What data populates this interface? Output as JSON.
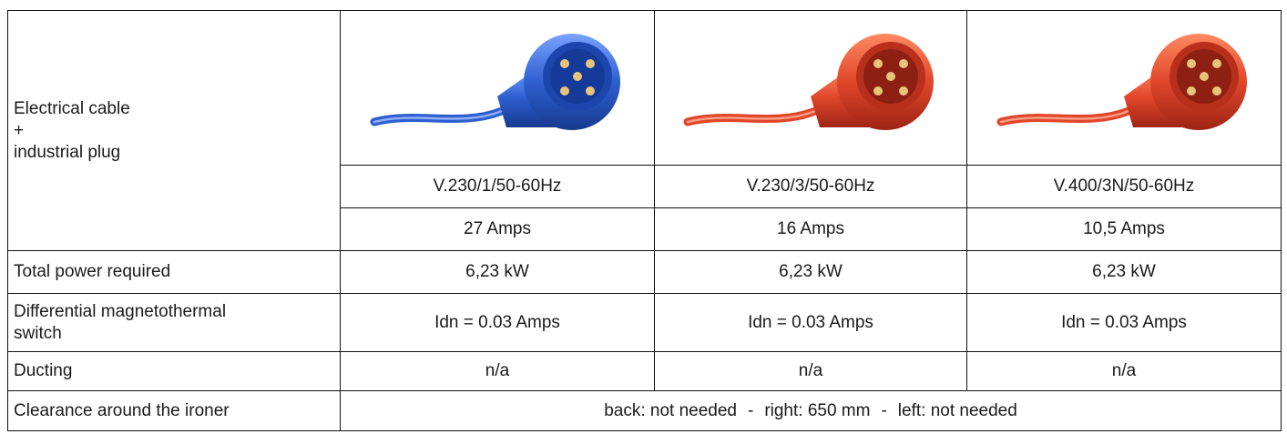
{
  "rows": {
    "cable": {
      "label_lines": [
        "Electrical cable",
        "+",
        "industrial plug"
      ],
      "plugs": [
        {
          "icon": "blue-industrial-plug-icon",
          "color": "#2e5fd0"
        },
        {
          "icon": "red-industrial-plug-icon",
          "color": "#e0462a"
        },
        {
          "icon": "red-industrial-plug-icon",
          "color": "#e0462a"
        }
      ],
      "voltages": [
        "V.230/1/50-60Hz",
        "V.230/3/50-60Hz",
        "V.400/3N/50-60Hz"
      ],
      "amps": [
        "27 Amps",
        "16 Amps",
        "10,5 Amps"
      ]
    },
    "power": {
      "label": "Total power required",
      "values": [
        "6,23 kW",
        "6,23 kW",
        "6,23 kW"
      ]
    },
    "switch": {
      "label_lines": [
        "Differential magnetothermal",
        "switch"
      ],
      "values": [
        "Idn = 0.03 Amps",
        "Idn = 0.03 Amps",
        "Idn = 0.03 Amps"
      ]
    },
    "ducting": {
      "label": "Ducting",
      "values": [
        "n/a",
        "n/a",
        "n/a"
      ]
    },
    "clearance": {
      "label": "Clearance around the ironer",
      "parts": [
        "back: not needed",
        "right: 650 mm",
        "left: not needed"
      ],
      "separator": "-"
    }
  }
}
